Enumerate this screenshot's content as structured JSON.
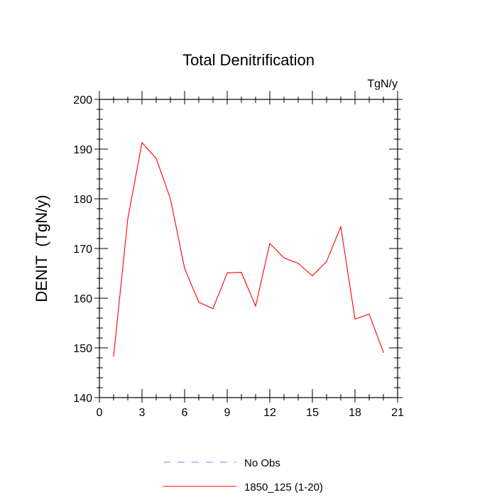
{
  "chart_data": {
    "type": "line",
    "title": "Total Denitrification",
    "units_label": "TgN/y",
    "xlabel": "",
    "ylabel": "DENIT  (TgN/y)",
    "xlim": [
      0,
      21
    ],
    "ylim": [
      140,
      200
    ],
    "x_ticks": [
      0,
      3,
      6,
      9,
      12,
      15,
      18,
      21
    ],
    "x_tick_labels": [
      "0",
      "3",
      "6",
      "9",
      "12",
      "15",
      "18",
      "21"
    ],
    "y_ticks": [
      140,
      150,
      160,
      170,
      180,
      190,
      200
    ],
    "y_tick_labels": [
      "140",
      "150",
      "160",
      "170",
      "180",
      "190",
      "200"
    ],
    "series": [
      {
        "name": "1850_125 (1-20)",
        "color": "#ff0000",
        "dash": "solid",
        "x": [
          1,
          2,
          3,
          4,
          5,
          6,
          7,
          8,
          9,
          10,
          11,
          12,
          13,
          14,
          15,
          16,
          17,
          18,
          19,
          20
        ],
        "values": [
          148.3,
          176.0,
          191.3,
          188.1,
          180.0,
          166.0,
          159.2,
          157.9,
          165.1,
          165.2,
          158.4,
          171.0,
          168.1,
          167.0,
          164.5,
          167.4,
          174.4,
          155.8,
          156.8,
          149.1
        ]
      }
    ],
    "legend": [
      {
        "label": "No Obs",
        "color": "#8080ff",
        "dash": "dashed"
      },
      {
        "label": "1850_125 (1-20)",
        "color": "#ff0000",
        "dash": "solid"
      }
    ],
    "legend_placement": "bottom"
  }
}
